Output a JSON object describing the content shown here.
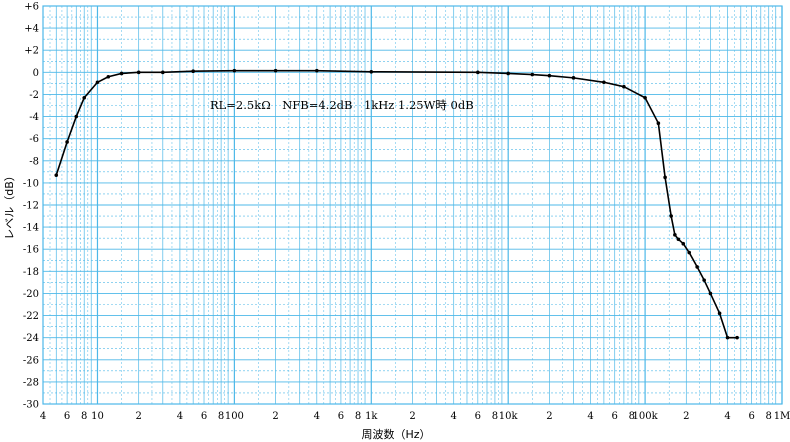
{
  "chart_data": {
    "type": "line",
    "title": "",
    "annotation": "RL=2.5kΩ　NFB=4.2dB　1kHz 1.25W時 0dB",
    "xlabel": "周波数（Hz）",
    "ylabel": "レベル（dB）",
    "xscale": "log",
    "xlim": [
      4,
      1000000
    ],
    "ylim": [
      -30,
      6
    ],
    "grid": true,
    "colors": {
      "grid": "#4db8e8",
      "line": "#000000"
    },
    "x_tick_labels": [
      {
        "x": 4,
        "label": "4"
      },
      {
        "x": 6,
        "label": "6"
      },
      {
        "x": 8,
        "label": "8"
      },
      {
        "x": 10,
        "label": "10"
      },
      {
        "x": 20,
        "label": "2"
      },
      {
        "x": 40,
        "label": "4"
      },
      {
        "x": 60,
        "label": "6"
      },
      {
        "x": 80,
        "label": "8"
      },
      {
        "x": 100,
        "label": "100"
      },
      {
        "x": 200,
        "label": "2"
      },
      {
        "x": 400,
        "label": "4"
      },
      {
        "x": 600,
        "label": "6"
      },
      {
        "x": 800,
        "label": "8"
      },
      {
        "x": 1000,
        "label": "1k"
      },
      {
        "x": 2000,
        "label": "2"
      },
      {
        "x": 4000,
        "label": "4"
      },
      {
        "x": 6000,
        "label": "6"
      },
      {
        "x": 8000,
        "label": "8"
      },
      {
        "x": 10000,
        "label": "10k"
      },
      {
        "x": 20000,
        "label": "2"
      },
      {
        "x": 40000,
        "label": "4"
      },
      {
        "x": 60000,
        "label": "6"
      },
      {
        "x": 80000,
        "label": "8"
      },
      {
        "x": 100000,
        "label": "100k"
      },
      {
        "x": 200000,
        "label": "2"
      },
      {
        "x": 400000,
        "label": "4"
      },
      {
        "x": 600000,
        "label": "6"
      },
      {
        "x": 800000,
        "label": "8"
      },
      {
        "x": 1000000,
        "label": "1M"
      }
    ],
    "y_tick_labels": [
      "+6",
      "+4",
      "+2",
      "0",
      "-2",
      "-4",
      "-6",
      "-8",
      "-10",
      "-12",
      "-14",
      "-16",
      "-18",
      "-20",
      "-22",
      "-24",
      "-26",
      "-28",
      "-30"
    ],
    "y_ticks": [
      6,
      4,
      2,
      0,
      -2,
      -4,
      -6,
      -8,
      -10,
      -12,
      -14,
      -16,
      -18,
      -20,
      -22,
      -24,
      -26,
      -28,
      -30
    ],
    "series": [
      {
        "x": [
          5,
          6,
          7,
          8,
          10,
          12,
          15,
          20,
          30,
          50,
          100,
          200,
          400,
          1000,
          6000,
          10000,
          15000,
          20000,
          30000,
          50000,
          70000,
          100000,
          125000,
          140000,
          155000,
          165000,
          175000,
          190000,
          210000,
          240000,
          270000,
          300000,
          350000,
          400000,
          470000
        ],
        "y": [
          -9.3,
          -6.3,
          -4.0,
          -2.3,
          -0.9,
          -0.4,
          -0.1,
          0.0,
          0.0,
          0.1,
          0.15,
          0.15,
          0.15,
          0.05,
          0.0,
          -0.1,
          -0.2,
          -0.3,
          -0.5,
          -0.9,
          -1.3,
          -2.3,
          -4.6,
          -9.5,
          -13.0,
          -14.7,
          -15.1,
          -15.5,
          -16.3,
          -17.6,
          -18.8,
          -20.0,
          -21.8,
          -24.0,
          -24.0
        ]
      }
    ]
  }
}
